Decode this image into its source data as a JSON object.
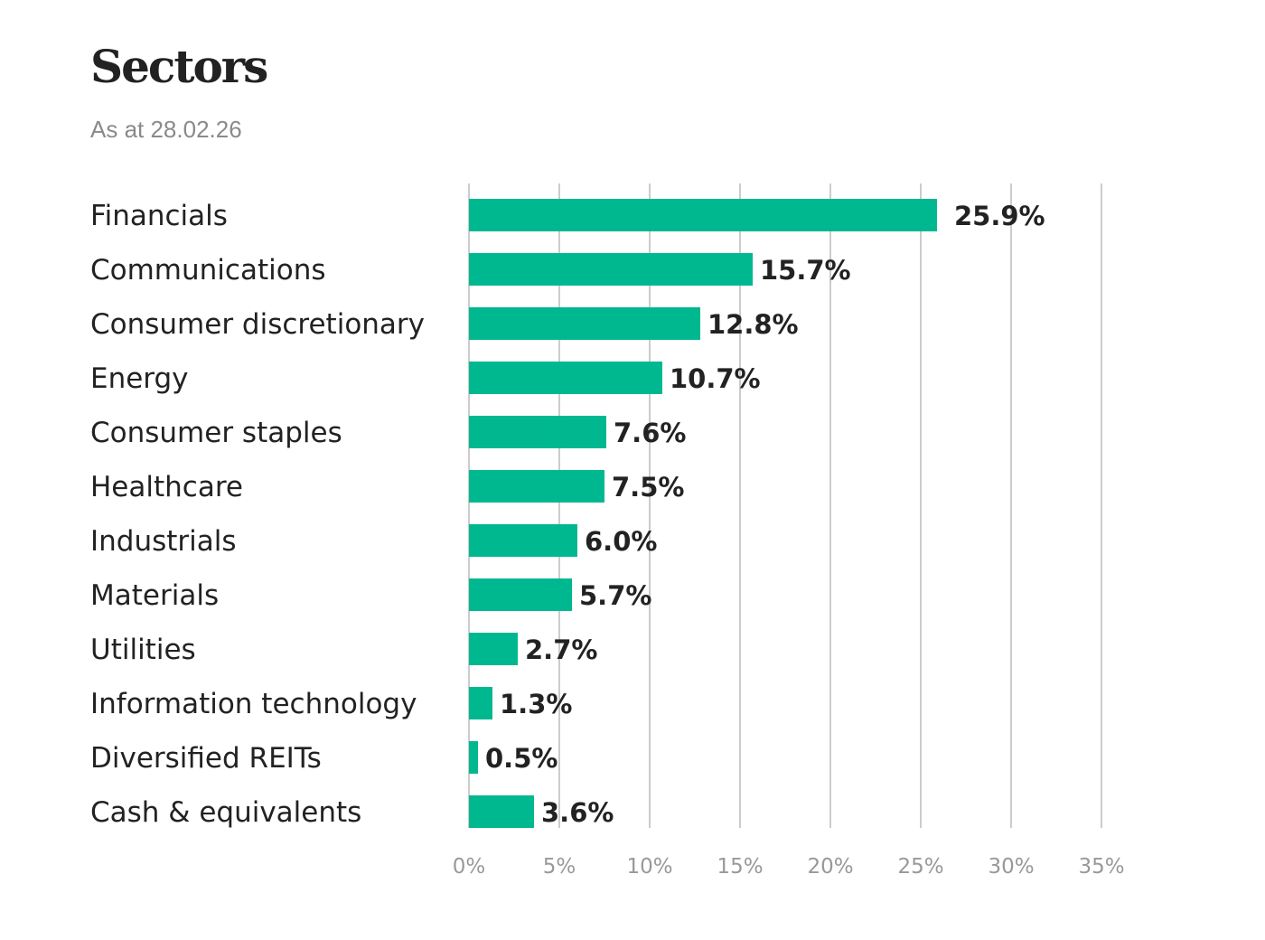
{
  "chart_data": {
    "type": "bar",
    "orientation": "horizontal",
    "title": "Sectors",
    "subtitle": "As at 28.02.26",
    "categories": [
      "Financials",
      "Communications",
      "Consumer discretionary",
      "Energy",
      "Consumer staples",
      "Healthcare",
      "Industrials",
      "Materials",
      "Utilities",
      "Information technology",
      "Diversified REITs",
      "Cash & equivalents"
    ],
    "values": [
      25.9,
      15.7,
      12.8,
      10.7,
      7.6,
      7.5,
      6.0,
      5.7,
      2.7,
      1.3,
      0.5,
      3.6
    ],
    "value_labels": [
      "25.9%",
      "15.7%",
      "12.8%",
      "10.7%",
      "7.6%",
      "7.5%",
      "6.0%",
      "5.7%",
      "2.7%",
      "1.3%",
      "0.5%",
      "3.6%"
    ],
    "xlim": [
      0,
      35
    ],
    "x_ticks": [
      0,
      5,
      10,
      15,
      20,
      25,
      30,
      35
    ],
    "x_tick_labels": [
      "0%",
      "5%",
      "10%",
      "15%",
      "20%",
      "25%",
      "30%",
      "35%"
    ],
    "grid": "vertical",
    "bar_color": "#00b88f",
    "grid_color": "#cccccc"
  }
}
